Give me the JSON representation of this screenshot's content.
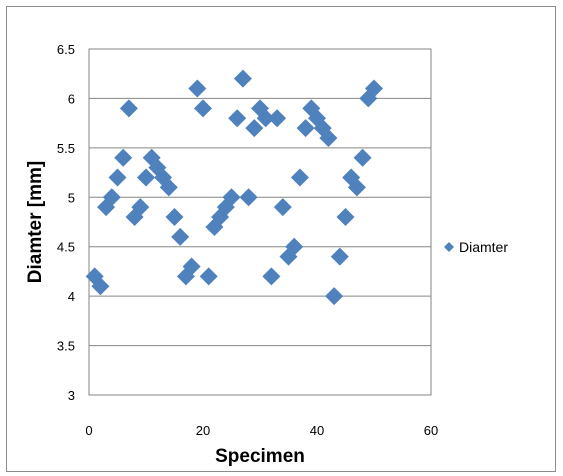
{
  "chart_data": {
    "type": "scatter",
    "xlabel": "Specimen",
    "ylabel": "Diamter [mm]",
    "xlim": [
      0,
      60
    ],
    "ylim": [
      3,
      6.5
    ],
    "xticks": [
      0,
      20,
      40,
      60
    ],
    "yticks": [
      3,
      3.5,
      4,
      4.5,
      5,
      5.5,
      6,
      6.5
    ],
    "xtick_labels": [
      "0",
      "20",
      "40",
      "60"
    ],
    "ytick_labels": [
      "3",
      "3.5",
      "4",
      "4.5",
      "5",
      "5.5",
      "6",
      "6.5"
    ],
    "grid": "horizontal",
    "legend_position": "right",
    "marker": "diamond",
    "series": [
      {
        "name": "Diamter",
        "color": "#4f81bd",
        "x": [
          1,
          2,
          3,
          4,
          5,
          6,
          7,
          8,
          9,
          10,
          11,
          12,
          13,
          14,
          15,
          16,
          17,
          18,
          19,
          20,
          21,
          22,
          23,
          24,
          25,
          26,
          27,
          28,
          29,
          30,
          31,
          32,
          33,
          34,
          35,
          36,
          37,
          38,
          39,
          40,
          41,
          42,
          43,
          44,
          45,
          46,
          47,
          48,
          49,
          50
        ],
        "y": [
          4.2,
          4.1,
          4.9,
          5.0,
          5.2,
          5.4,
          5.9,
          4.8,
          4.9,
          5.2,
          5.4,
          5.3,
          5.2,
          5.1,
          4.8,
          4.6,
          4.2,
          4.3,
          6.1,
          5.9,
          4.2,
          4.7,
          4.8,
          4.9,
          5.0,
          5.8,
          6.2,
          5.0,
          5.7,
          5.9,
          5.8,
          4.2,
          5.8,
          4.9,
          4.4,
          4.5,
          5.2,
          5.7,
          5.9,
          5.8,
          5.7,
          5.6,
          4.0,
          4.4,
          4.8,
          5.2,
          5.1,
          5.4,
          6.0,
          6.1
        ]
      }
    ]
  }
}
